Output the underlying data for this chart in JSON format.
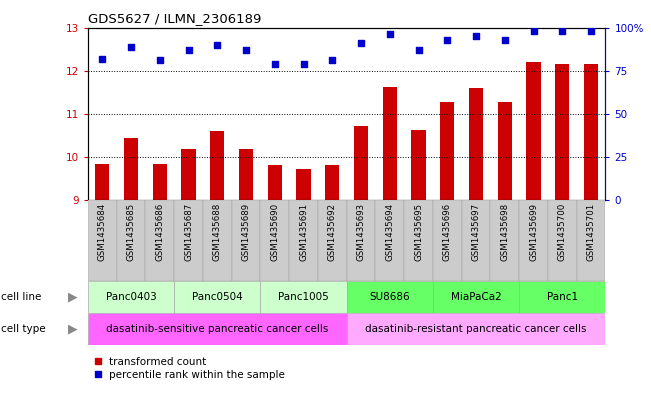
{
  "title": "GDS5627 / ILMN_2306189",
  "samples": [
    "GSM1435684",
    "GSM1435685",
    "GSM1435686",
    "GSM1435687",
    "GSM1435688",
    "GSM1435689",
    "GSM1435690",
    "GSM1435691",
    "GSM1435692",
    "GSM1435693",
    "GSM1435694",
    "GSM1435695",
    "GSM1435696",
    "GSM1435697",
    "GSM1435698",
    "GSM1435699",
    "GSM1435700",
    "GSM1435701"
  ],
  "bar_values": [
    9.85,
    10.45,
    9.85,
    10.2,
    10.6,
    10.2,
    9.82,
    9.72,
    9.82,
    10.72,
    11.62,
    10.62,
    11.28,
    11.6,
    11.28,
    12.2,
    12.15,
    12.15
  ],
  "dot_values": [
    82,
    89,
    81,
    87,
    90,
    87,
    79,
    79,
    81,
    91,
    96,
    87,
    93,
    95,
    93,
    98,
    98,
    98
  ],
  "bar_color": "#cc0000",
  "dot_color": "#0000cc",
  "ylim_left": [
    9,
    13
  ],
  "ylim_right": [
    0,
    100
  ],
  "yticks_left": [
    9,
    10,
    11,
    12,
    13
  ],
  "yticks_right": [
    0,
    25,
    50,
    75,
    100
  ],
  "ytick_right_labels": [
    "0",
    "25",
    "50",
    "75",
    "100%"
  ],
  "cell_lines": [
    {
      "label": "Panc0403",
      "start": 0,
      "end": 2,
      "color": "#ccffcc"
    },
    {
      "label": "Panc0504",
      "start": 3,
      "end": 5,
      "color": "#ccffcc"
    },
    {
      "label": "Panc1005",
      "start": 6,
      "end": 8,
      "color": "#ccffcc"
    },
    {
      "label": "SU8686",
      "start": 9,
      "end": 11,
      "color": "#66ff66"
    },
    {
      "label": "MiaPaCa2",
      "start": 12,
      "end": 14,
      "color": "#66ff66"
    },
    {
      "label": "Panc1",
      "start": 15,
      "end": 17,
      "color": "#66ff66"
    }
  ],
  "cell_types": [
    {
      "label": "dasatinib-sensitive pancreatic cancer cells",
      "start": 0,
      "end": 8,
      "color": "#ff66ff"
    },
    {
      "label": "dasatinib-resistant pancreatic cancer cells",
      "start": 9,
      "end": 17,
      "color": "#ffaaff"
    }
  ],
  "legend_bar_label": "transformed count",
  "legend_dot_label": "percentile rank within the sample",
  "cell_line_label": "cell line",
  "cell_type_label": "cell type",
  "xticklabel_bg": "#cccccc",
  "arrow_color": "#888888"
}
